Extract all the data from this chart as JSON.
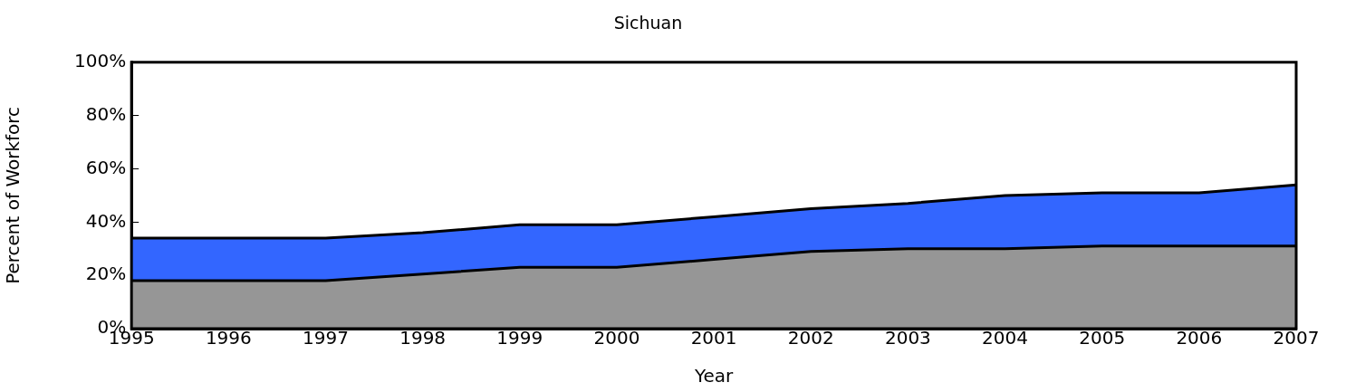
{
  "chart_data": {
    "type": "area",
    "title": "Sichuan",
    "xlabel": "Year",
    "ylabel": "Percent of Workforc",
    "stacked": true,
    "x": [
      1995,
      1996,
      1997,
      1998,
      1999,
      2000,
      2001,
      2002,
      2003,
      2004,
      2005,
      2006,
      2007
    ],
    "series": [
      {
        "color": "#969696",
        "values": [
          18,
          18,
          18,
          20.5,
          23,
          23,
          26,
          29,
          30,
          30,
          31,
          31,
          31
        ]
      },
      {
        "color": "#3366ff",
        "values": [
          16,
          16,
          16,
          15.5,
          16,
          16,
          16,
          16,
          17,
          20,
          20,
          20,
          23
        ]
      }
    ],
    "xlim": [
      1995,
      2007
    ],
    "xticks": [
      1995,
      1996,
      1997,
      1998,
      1999,
      2000,
      2001,
      2002,
      2003,
      2004,
      2005,
      2006,
      2007
    ],
    "ylim": [
      0,
      100
    ],
    "yticks": [
      {
        "value": 0,
        "label": "0%"
      },
      {
        "value": 20,
        "label": "20%"
      },
      {
        "value": 40,
        "label": "40%"
      },
      {
        "value": 60,
        "label": "60%"
      },
      {
        "value": 80,
        "label": "80%"
      },
      {
        "value": 100,
        "label": "100%"
      }
    ],
    "grid": false,
    "legend": false
  }
}
